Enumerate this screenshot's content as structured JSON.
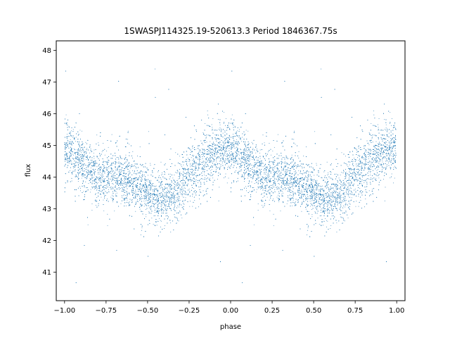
{
  "chart_data": {
    "type": "scatter",
    "title": "1SWASPJ114325.19-520613.3 Period 1846367.75s",
    "xlabel": "phase",
    "ylabel": "flux",
    "xlim": [
      -1.05,
      1.05
    ],
    "ylim": [
      40.1,
      48.3
    ],
    "xticks": [
      -1.0,
      -0.75,
      -0.5,
      -0.25,
      0.0,
      0.25,
      0.5,
      0.75,
      1.0
    ],
    "xtick_labels": [
      "−1.00",
      "−0.75",
      "−0.50",
      "−0.25",
      "0.00",
      "0.25",
      "0.50",
      "0.75",
      "1.00"
    ],
    "yticks": [
      41,
      42,
      43,
      44,
      45,
      46,
      47,
      48
    ],
    "ytick_labels": [
      "41",
      "42",
      "43",
      "44",
      "45",
      "46",
      "47",
      "48"
    ],
    "grid": false,
    "point_color": "#1f77b4",
    "series": [
      {
        "points_per_cycle": 7000,
        "phase_range": [
          -1.0,
          1.0
        ],
        "period_in_phase": 1.0,
        "mean_profile": {
          "phase": [
            0.0,
            0.05,
            0.1,
            0.15,
            0.2,
            0.25,
            0.3,
            0.35,
            0.4,
            0.45,
            0.5,
            0.55,
            0.6,
            0.65,
            0.7,
            0.75,
            0.8,
            0.85,
            0.9,
            0.95,
            1.0
          ],
          "flux": [
            44.85,
            44.7,
            44.4,
            44.15,
            44.05,
            44.0,
            44.1,
            44.0,
            43.85,
            43.7,
            43.55,
            43.35,
            43.3,
            43.4,
            43.7,
            44.1,
            44.3,
            44.5,
            44.75,
            44.85,
            44.85
          ]
        },
        "scatter_sigma": 0.45,
        "outlier_range": [
          40.5,
          47.8
        ]
      }
    ]
  }
}
